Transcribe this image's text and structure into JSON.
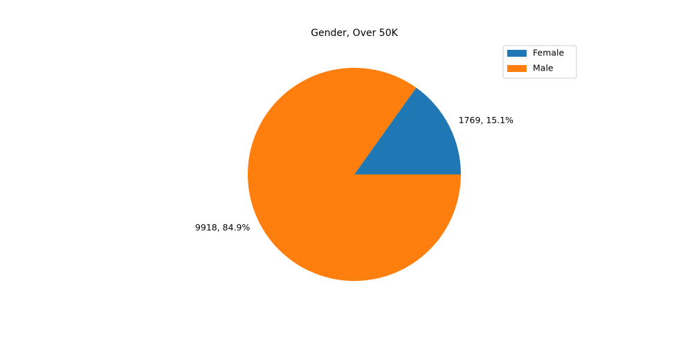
{
  "chart_data": {
    "type": "pie",
    "title": "Gender, Over 50K",
    "slices": [
      {
        "label": " Female",
        "value": 1769,
        "percent": 15.1,
        "display": "1769, 15.1%",
        "color": "#1f77b4"
      },
      {
        "label": " Male",
        "value": 9918,
        "percent": 84.9,
        "display": "9918, 84.9%",
        "color": "#ff7f0e"
      }
    ],
    "start_angle_deg": 0,
    "direction": "counterclockwise",
    "legend_placement": "top-right"
  }
}
